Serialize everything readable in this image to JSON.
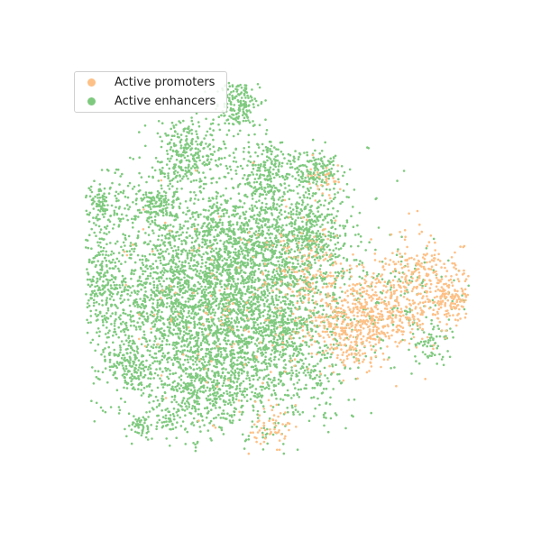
{
  "chart_data": {
    "type": "scatter",
    "title": "",
    "xlabel": "",
    "ylabel": "",
    "axes_visible": false,
    "grid": false,
    "legend_placement": "top-left",
    "series": [
      {
        "name": "Active promoters",
        "color": "#fdc086"
      },
      {
        "name": "Active enhancers",
        "color": "#7fc97f"
      }
    ]
  }
}
